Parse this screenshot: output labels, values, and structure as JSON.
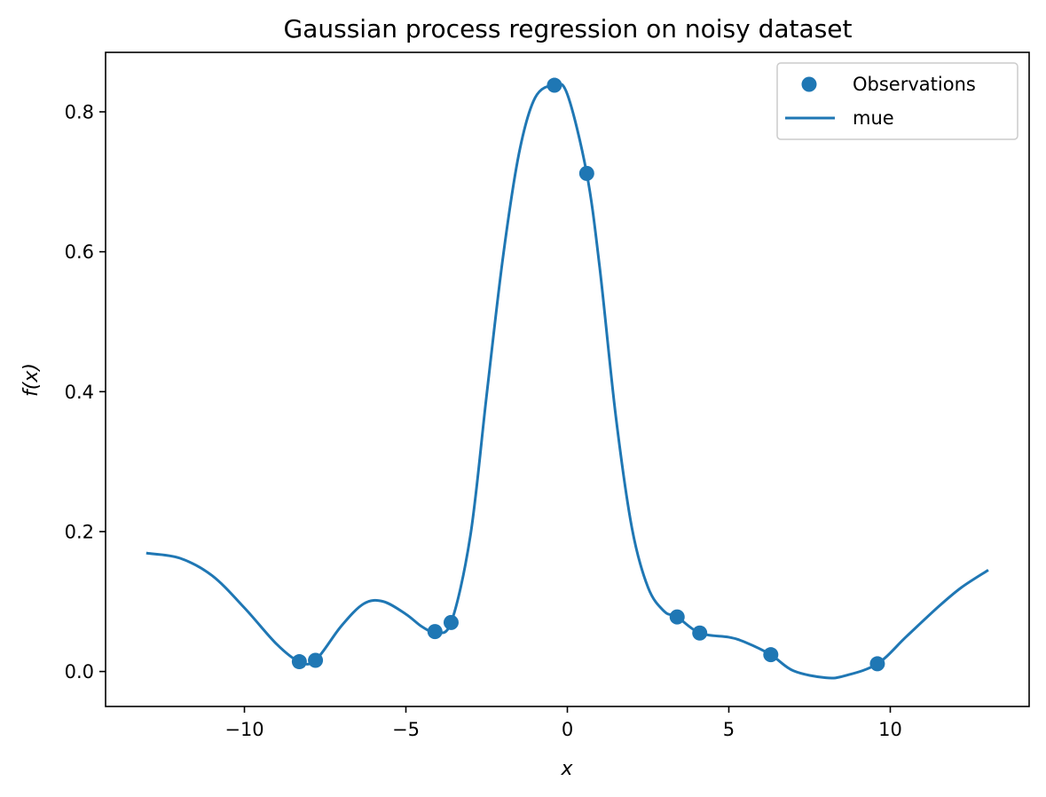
{
  "chart_data": {
    "type": "scatter",
    "title": "Gaussian process regression on noisy dataset",
    "xlabel": "x",
    "ylabel": "f(x)",
    "xlim": [
      -14.3,
      14.3
    ],
    "ylim": [
      -0.05,
      0.885
    ],
    "xticks": [
      -10,
      -5,
      0,
      5,
      10
    ],
    "xtick_labels": [
      "−10",
      "−5",
      "0",
      "5",
      "10"
    ],
    "yticks": [
      0.0,
      0.2,
      0.4,
      0.6,
      0.8
    ],
    "ytick_labels": [
      "0.0",
      "0.2",
      "0.4",
      "0.6",
      "0.8"
    ],
    "grid": false,
    "legend_position": "top-right",
    "series": [
      {
        "name": "Observations",
        "kind": "scatter",
        "color": "#1f77b4",
        "x": [
          -8.3,
          -7.8,
          -4.1,
          -3.6,
          -0.4,
          0.6,
          3.4,
          4.1,
          6.3,
          9.6
        ],
        "y": [
          0.014,
          0.016,
          0.057,
          0.07,
          0.838,
          0.712,
          0.078,
          0.055,
          0.024,
          0.011
        ]
      },
      {
        "name": "mue",
        "kind": "line",
        "color": "#1f77b4",
        "x": [
          -13.0,
          -12.0,
          -11.0,
          -10.0,
          -9.0,
          -8.3,
          -7.8,
          -7.0,
          -6.3,
          -5.7,
          -5.0,
          -4.5,
          -4.1,
          -3.6,
          -3.0,
          -2.5,
          -2.0,
          -1.5,
          -1.0,
          -0.4,
          0.0,
          0.6,
          1.0,
          1.5,
          2.0,
          2.5,
          3.0,
          3.4,
          4.1,
          5.0,
          5.5,
          6.3,
          7.0,
          8.0,
          8.6,
          9.6,
          10.5,
          11.5,
          12.2,
          13.0
        ],
        "y": [
          0.169,
          0.162,
          0.137,
          0.091,
          0.039,
          0.014,
          0.016,
          0.065,
          0.097,
          0.1,
          0.082,
          0.064,
          0.057,
          0.07,
          0.195,
          0.395,
          0.59,
          0.74,
          0.82,
          0.838,
          0.825,
          0.712,
          0.578,
          0.365,
          0.205,
          0.12,
          0.086,
          0.078,
          0.055,
          0.049,
          0.042,
          0.024,
          0.001,
          -0.009,
          -0.006,
          0.011,
          0.05,
          0.093,
          0.12,
          0.144
        ]
      }
    ]
  }
}
